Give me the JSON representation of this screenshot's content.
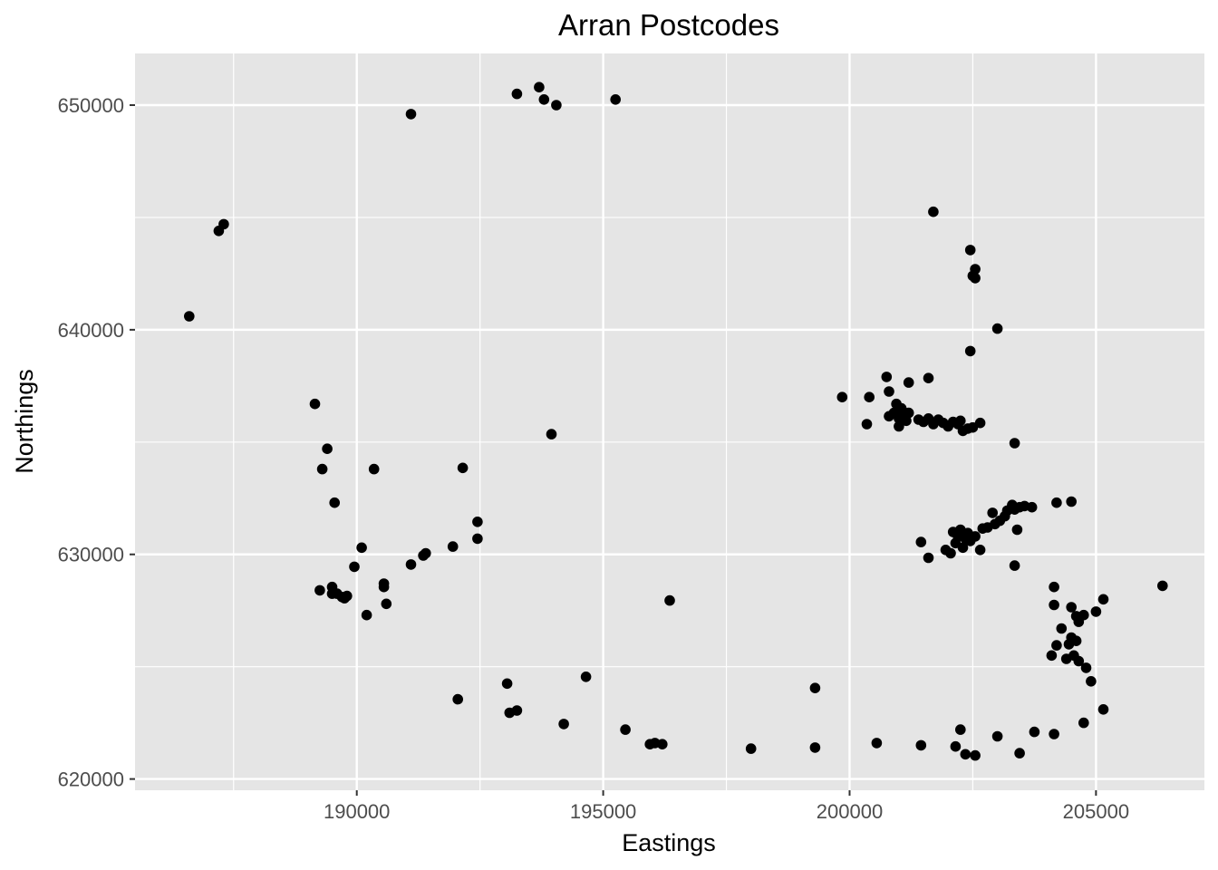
{
  "chart_data": {
    "type": "scatter",
    "title": "Arran Postcodes",
    "xlabel": "Eastings",
    "ylabel": "Northings",
    "xlim": [
      185500,
      207200
    ],
    "ylim": [
      619500,
      652300
    ],
    "x_ticks": [
      190000,
      195000,
      200000,
      205000
    ],
    "x_tick_labels": [
      "190000",
      "195000",
      "200000",
      "205000"
    ],
    "y_ticks": [
      620000,
      630000,
      640000,
      650000
    ],
    "y_tick_labels": [
      "620000",
      "630000",
      "640000",
      "650000"
    ],
    "grid": true,
    "colors": {
      "panel": "#e5e5e5",
      "grid": "#ffffff",
      "point": "#000000",
      "tick_label": "#4d4d4d"
    },
    "points": [
      [
        186600,
        640600
      ],
      [
        187200,
        644400
      ],
      [
        187300,
        644700
      ],
      [
        191100,
        649600
      ],
      [
        193250,
        650500
      ],
      [
        193700,
        650800
      ],
      [
        193800,
        650250
      ],
      [
        194050,
        650000
      ],
      [
        195250,
        650250
      ],
      [
        189150,
        636700
      ],
      [
        189400,
        634700
      ],
      [
        189300,
        633800
      ],
      [
        189550,
        632300
      ],
      [
        190350,
        633800
      ],
      [
        192150,
        633850
      ],
      [
        193950,
        635350
      ],
      [
        189250,
        628400
      ],
      [
        189500,
        628550
      ],
      [
        189500,
        628250
      ],
      [
        189600,
        628250
      ],
      [
        189700,
        628100
      ],
      [
        189800,
        628150
      ],
      [
        189750,
        628050
      ],
      [
        189950,
        629450
      ],
      [
        190100,
        630300
      ],
      [
        190200,
        627300
      ],
      [
        190550,
        628700
      ],
      [
        190550,
        628550
      ],
      [
        190600,
        627800
      ],
      [
        191100,
        629550
      ],
      [
        191350,
        629950
      ],
      [
        191400,
        630050
      ],
      [
        191950,
        630350
      ],
      [
        192450,
        631450
      ],
      [
        192450,
        630700
      ],
      [
        196350,
        627950
      ],
      [
        192050,
        623550
      ],
      [
        193050,
        624250
      ],
      [
        193100,
        622950
      ],
      [
        193250,
        623050
      ],
      [
        194200,
        622450
      ],
      [
        194650,
        624550
      ],
      [
        195450,
        622200
      ],
      [
        195950,
        621550
      ],
      [
        196050,
        621600
      ],
      [
        196200,
        621550
      ],
      [
        198000,
        621350
      ],
      [
        199300,
        621400
      ],
      [
        199300,
        624050
      ],
      [
        200550,
        621600
      ],
      [
        201450,
        621500
      ],
      [
        202150,
        621450
      ],
      [
        202250,
        622200
      ],
      [
        202350,
        621100
      ],
      [
        202550,
        621050
      ],
      [
        203000,
        621900
      ],
      [
        203450,
        621150
      ],
      [
        203750,
        622100
      ],
      [
        204150,
        622000
      ],
      [
        204750,
        622500
      ],
      [
        205150,
        623100
      ],
      [
        201700,
        645250
      ],
      [
        202450,
        643550
      ],
      [
        202550,
        642700
      ],
      [
        202550,
        642300
      ],
      [
        202500,
        642400
      ],
      [
        203000,
        640050
      ],
      [
        202450,
        639050
      ],
      [
        203350,
        634950
      ],
      [
        199850,
        637000
      ],
      [
        200400,
        637000
      ],
      [
        200350,
        635800
      ],
      [
        200750,
        637900
      ],
      [
        200800,
        637250
      ],
      [
        201200,
        637650
      ],
      [
        201600,
        637850
      ],
      [
        200800,
        636150
      ],
      [
        200900,
        636300
      ],
      [
        200950,
        636700
      ],
      [
        201000,
        636050
      ],
      [
        201050,
        636500
      ],
      [
        201000,
        635700
      ],
      [
        201100,
        636250
      ],
      [
        201200,
        636300
      ],
      [
        201150,
        635950
      ],
      [
        201400,
        636000
      ],
      [
        201500,
        635900
      ],
      [
        201600,
        636050
      ],
      [
        201700,
        635800
      ],
      [
        201800,
        636000
      ],
      [
        201900,
        635850
      ],
      [
        202000,
        635700
      ],
      [
        202100,
        635900
      ],
      [
        202200,
        635800
      ],
      [
        202250,
        635950
      ],
      [
        202300,
        635500
      ],
      [
        202400,
        635600
      ],
      [
        202500,
        635650
      ],
      [
        202650,
        635850
      ],
      [
        201450,
        630550
      ],
      [
        201600,
        629850
      ],
      [
        201950,
        630200
      ],
      [
        202050,
        630050
      ],
      [
        202100,
        631000
      ],
      [
        202150,
        630500
      ],
      [
        202200,
        630800
      ],
      [
        202250,
        631100
      ],
      [
        202300,
        630300
      ],
      [
        202350,
        630700
      ],
      [
        202400,
        630950
      ],
      [
        202450,
        630600
      ],
      [
        202550,
        630800
      ],
      [
        202650,
        630200
      ],
      [
        202700,
        631150
      ],
      [
        202800,
        631200
      ],
      [
        202900,
        631850
      ],
      [
        202950,
        631350
      ],
      [
        203050,
        631500
      ],
      [
        203150,
        631700
      ],
      [
        203200,
        631950
      ],
      [
        203300,
        632200
      ],
      [
        203350,
        632000
      ],
      [
        203400,
        631100
      ],
      [
        203450,
        632100
      ],
      [
        203550,
        632150
      ],
      [
        203700,
        632100
      ],
      [
        203350,
        629500
      ],
      [
        204200,
        632300
      ],
      [
        204500,
        632350
      ],
      [
        204150,
        628550
      ],
      [
        204150,
        627750
      ],
      [
        204300,
        626700
      ],
      [
        204200,
        625950
      ],
      [
        204100,
        625500
      ],
      [
        204400,
        625350
      ],
      [
        204450,
        626000
      ],
      [
        204500,
        626300
      ],
      [
        204550,
        625500
      ],
      [
        204600,
        626150
      ],
      [
        204650,
        625250
      ],
      [
        204500,
        627650
      ],
      [
        204600,
        627250
      ],
      [
        204650,
        627000
      ],
      [
        204750,
        627300
      ],
      [
        204800,
        624950
      ],
      [
        204900,
        624350
      ],
      [
        205000,
        627450
      ],
      [
        205150,
        628000
      ],
      [
        206350,
        628600
      ]
    ]
  }
}
